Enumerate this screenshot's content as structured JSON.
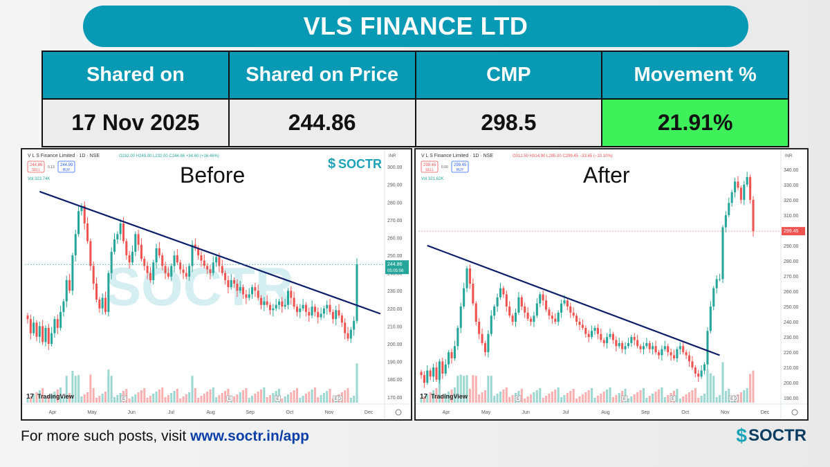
{
  "title": "VLS FINANCE LTD",
  "table": {
    "headers": [
      "Shared on",
      "Shared on Price",
      "CMP",
      "Movement %"
    ],
    "values": [
      "17 Nov 2025",
      "244.86",
      "298.5",
      "21.91%"
    ]
  },
  "footer": {
    "prefix": "For more such posts, visit ",
    "link": "www.soctr.in/app"
  },
  "brand": "SOCTR",
  "colors": {
    "accent": "#0899b5",
    "positive": "#3ef05a",
    "up": "#26a69a",
    "down": "#ef5350",
    "trendline": "#0d1f6b"
  },
  "chart_data": [
    {
      "type": "candlestick",
      "label": "Before",
      "header": "V L S Finance Limited · 1D · NSE",
      "ohlc_text": "O232.00 H249.00 L232.00 C244.86 +34.60 (+16.46%)",
      "sell": "244.86",
      "buy": "244.99",
      "spread": "0.13",
      "volume_label": "Vol 323.74K",
      "last_price": "244.86",
      "countdown": "05:05:08",
      "watermark": "SOCTR",
      "x_ticks": [
        "Apr",
        "May",
        "Jun",
        "Jul",
        "Aug",
        "Sep",
        "Oct",
        "Nov",
        "Dec"
      ],
      "y_ticks": [
        "300.00",
        "290.00",
        "280.00",
        "270.00",
        "260.00",
        "250.00",
        "240.00",
        "230.00",
        "220.00",
        "210.00",
        "200.00",
        "190.00",
        "180.00",
        "170.00"
      ],
      "ylim": [
        166,
        302
      ],
      "events": [
        "E",
        "E",
        "E",
        "D",
        "E"
      ],
      "trendline": {
        "from": {
          "x": "early Apr",
          "y": 286
        },
        "to": {
          "x": "late Nov",
          "y": 217
        }
      },
      "closes": [
        214,
        206,
        212,
        204,
        210,
        201,
        209,
        200,
        206,
        214,
        209,
        218,
        224,
        236,
        230,
        250,
        262,
        275,
        278,
        268,
        258,
        244,
        234,
        225,
        220,
        226,
        218,
        240,
        252,
        259,
        262,
        268,
        258,
        250,
        246,
        252,
        262,
        256,
        248,
        244,
        240,
        236,
        246,
        254,
        250,
        244,
        240,
        238,
        244,
        250,
        246,
        242,
        240,
        238,
        244,
        256,
        254,
        250,
        247,
        244,
        242,
        240,
        246,
        249,
        244,
        240,
        236,
        232,
        236,
        234,
        230,
        232,
        228,
        226,
        228,
        232,
        230,
        226,
        222,
        224,
        222,
        219,
        220,
        222,
        224,
        221,
        222,
        230,
        226,
        221,
        218,
        220,
        222,
        218,
        216,
        221,
        218,
        215,
        217,
        220,
        222,
        218,
        214,
        219,
        216,
        212,
        206,
        203,
        208,
        213,
        244.86
      ]
    },
    {
      "type": "candlestick",
      "label": "After",
      "header": "V L S Finance Limited · 1D · NSE",
      "ohlc_text": "O312.50 H314.90 L295.00 C299.45 −33.65 (−10.10%)",
      "sell": "299.45",
      "buy": "299.45",
      "spread": "0.00",
      "volume_label": "Vol 321.62K",
      "last_price": "299.45",
      "x_ticks": [
        "Apr",
        "May",
        "Jun",
        "Jul",
        "Aug",
        "Sep",
        "Oct",
        "Nov",
        "Dec"
      ],
      "y_ticks": [
        "340.00",
        "330.00",
        "320.00",
        "310.00",
        "300.00",
        "290.00",
        "280.00",
        "270.00",
        "260.00",
        "250.00",
        "240.00",
        "230.00",
        "220.00",
        "210.00",
        "200.00",
        "190.00"
      ],
      "ylim": [
        186,
        344
      ],
      "events": [
        "E",
        "E",
        "E",
        "D",
        "E"
      ],
      "trendline": {
        "from": {
          "x": "early Apr",
          "y": 290
        },
        "to": {
          "x": "mid Nov",
          "y": 218
        }
      },
      "closes": [
        205,
        200,
        208,
        204,
        210,
        202,
        214,
        206,
        212,
        220,
        216,
        224,
        236,
        250,
        262,
        275,
        265,
        252,
        240,
        232,
        226,
        220,
        232,
        244,
        250,
        256,
        262,
        258,
        250,
        244,
        240,
        246,
        256,
        250,
        246,
        242,
        240,
        244,
        252,
        258,
        254,
        248,
        244,
        242,
        240,
        246,
        252,
        254,
        250,
        246,
        244,
        240,
        238,
        236,
        232,
        230,
        234,
        236,
        232,
        228,
        226,
        230,
        232,
        228,
        224,
        226,
        222,
        224,
        226,
        230,
        228,
        224,
        222,
        224,
        226,
        222,
        224,
        220,
        218,
        222,
        224,
        220,
        218,
        216,
        222,
        224,
        220,
        218,
        214,
        210,
        206,
        204,
        208,
        212,
        234,
        250,
        262,
        268,
        268,
        302,
        310,
        318,
        325,
        332,
        328,
        320,
        330,
        335,
        320,
        299.45
      ]
    }
  ]
}
